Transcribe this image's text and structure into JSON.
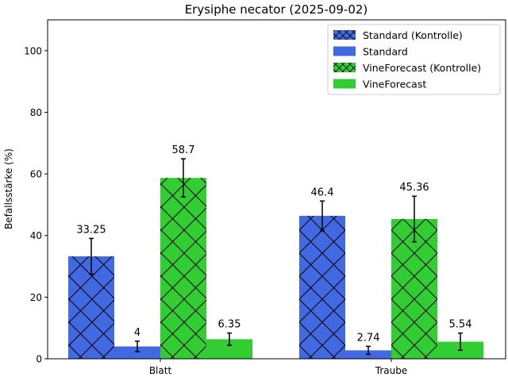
{
  "chart_data": {
    "type": "bar",
    "title": "Erysiphe necator (2025-09-02)",
    "xlabel": "",
    "ylabel": "Befallsstärke (%)",
    "ylim": [
      0,
      110
    ],
    "yticks": [
      0,
      20,
      40,
      60,
      80,
      100
    ],
    "categories": [
      "Blatt",
      "Traube"
    ],
    "series": [
      {
        "name": "Standard (Kontrolle)",
        "color": "#4169E1",
        "hatch": true,
        "values": [
          33.25,
          46.4
        ],
        "errors": [
          5.8,
          4.8
        ],
        "labels": [
          "33.25",
          "46.4"
        ]
      },
      {
        "name": "Standard",
        "color": "#4169E1",
        "hatch": false,
        "values": [
          4,
          2.74
        ],
        "errors": [
          1.7,
          1.3
        ],
        "labels": [
          "4",
          "2.74"
        ]
      },
      {
        "name": "VineForecast (Kontrolle)",
        "color": "#32CD32",
        "hatch": true,
        "values": [
          58.7,
          45.36
        ],
        "errors": [
          6.2,
          7.4
        ],
        "labels": [
          "58.7",
          "45.36"
        ]
      },
      {
        "name": "VineForecast",
        "color": "#32CD32",
        "hatch": false,
        "values": [
          6.35,
          5.54
        ],
        "errors": [
          2.0,
          2.8
        ],
        "labels": [
          "6.35",
          "5.54"
        ]
      }
    ],
    "legend_position": "top-right"
  }
}
